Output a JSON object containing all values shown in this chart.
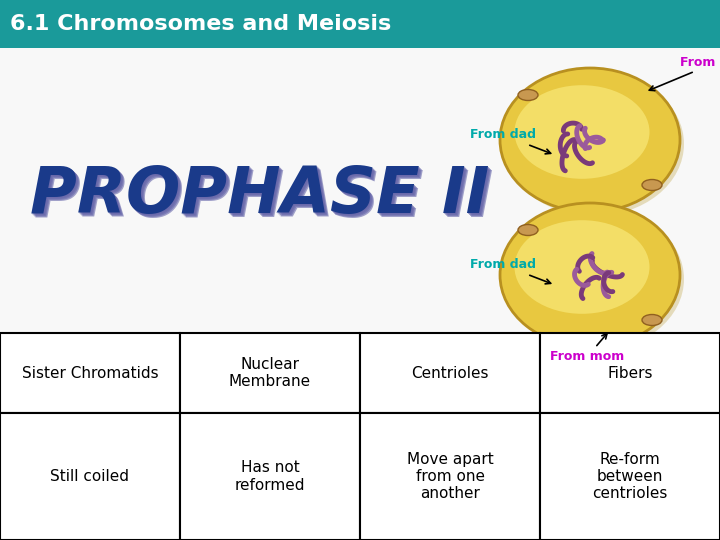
{
  "title": "6.1 Chromosomes and Meiosis",
  "title_bg_color": "#1a9a9a",
  "title_text_color": "#ffffff",
  "title_fontsize": 16,
  "prophase_text": "PROPHASE II",
  "prophase_color": "#1a3a8a",
  "prophase_shadow_color": "#6666aa",
  "bg_color": "#f0f0f0",
  "label_from_mom_color": "#cc00cc",
  "label_from_dad_color": "#00aaaa",
  "table_headers": [
    "Sister Chromatids",
    "Nuclear\nMembrane",
    "Centrioles",
    "Fibers"
  ],
  "table_row": [
    "Still coiled",
    "Has not\nreformed",
    "Move apart\nfrom one\nanother",
    "Re-form\nbetween\ncentrioles"
  ],
  "table_border_color": "#000000",
  "table_fontsize": 11
}
